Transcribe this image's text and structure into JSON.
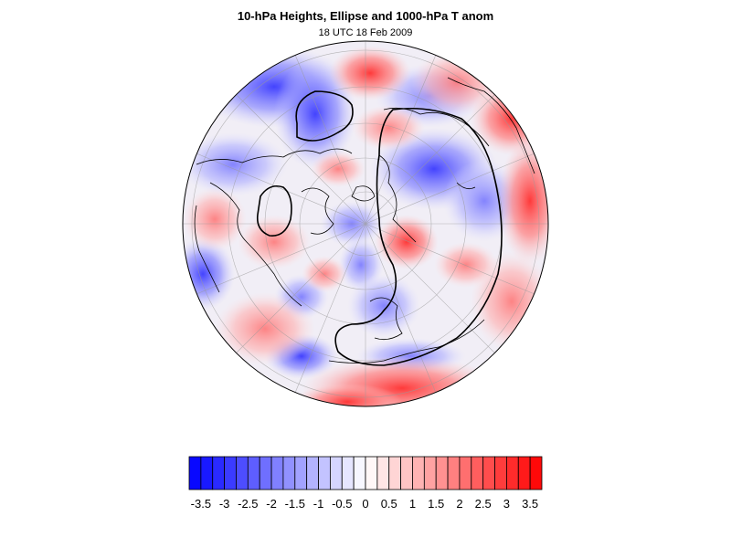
{
  "title": "10-hPa Heights, Ellipse and 1000-hPa T anom",
  "subtitle": "18 UTC 18 Feb 2009",
  "colorbar": {
    "min": -3.75,
    "max": 3.75,
    "step": 0.25,
    "labels": [
      "-3.5",
      "-3",
      "-2.5",
      "-2",
      "-1.5",
      "-1",
      "-0.5",
      "0",
      "0.5",
      "1",
      "1.5",
      "2",
      "2.5",
      "3",
      "3.5"
    ],
    "colors": {
      "low": "#0000ff",
      "mid": "#ffffff",
      "high": "#ff0000"
    }
  },
  "map": {
    "projection": "polar-stereographic",
    "hemisphere": "north",
    "contours": [
      "height-contour-polar-vortex",
      "ellipse-contour",
      "height-contour-small-low",
      "height-contour-atlantic"
    ]
  }
}
